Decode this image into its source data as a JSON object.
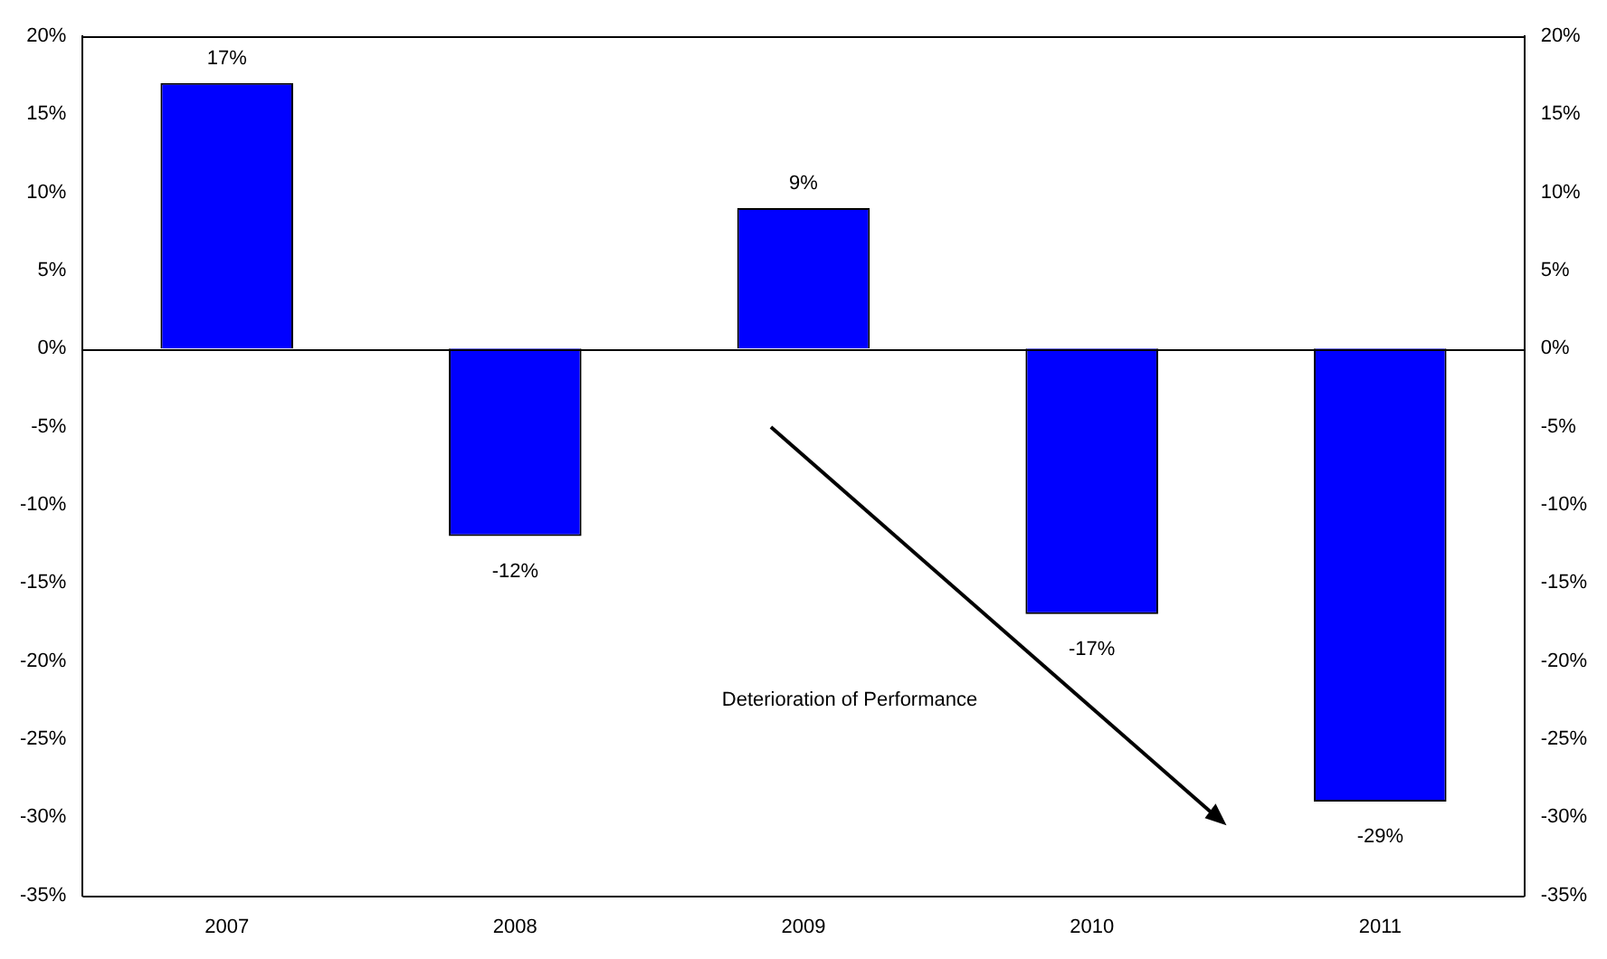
{
  "chart_data": {
    "type": "bar",
    "categories": [
      "2007",
      "2008",
      "2009",
      "2010",
      "2011"
    ],
    "values": [
      17,
      -12,
      9,
      -17,
      -29
    ],
    "color": "#0000ff",
    "value_labels": [
      "17%",
      "-12%",
      "9%",
      "-17%",
      "-29%"
    ],
    "ylim": [
      -35,
      20
    ],
    "yticks": [
      {
        "value": -35,
        "label": "-35%"
      },
      {
        "value": -30,
        "label": "-30%"
      },
      {
        "value": -25,
        "label": "-25%"
      },
      {
        "value": -20,
        "label": "-20%"
      },
      {
        "value": -15,
        "label": "-15%"
      },
      {
        "value": -10,
        "label": "-10%"
      },
      {
        "value": -5,
        "label": "-5%"
      },
      {
        "value": 0,
        "label": "0%"
      },
      {
        "value": 5,
        "label": "5%"
      },
      {
        "value": 10,
        "label": "10%"
      },
      {
        "value": 15,
        "label": "15%"
      },
      {
        "value": 20,
        "label": "20%"
      }
    ],
    "y2lim": [
      -35,
      20
    ],
    "y2ticks": [
      {
        "value": -35,
        "label": "-35%"
      },
      {
        "value": -30,
        "label": "-30%"
      },
      {
        "value": -25,
        "label": "-25%"
      },
      {
        "value": -20,
        "label": "-20%"
      },
      {
        "value": -15,
        "label": "-15%"
      },
      {
        "value": -10,
        "label": "-10%"
      },
      {
        "value": -5,
        "label": "-5%"
      },
      {
        "value": 0,
        "label": "0%"
      },
      {
        "value": 5,
        "label": "5%"
      },
      {
        "value": 10,
        "label": "10%"
      },
      {
        "value": 15,
        "label": "15%"
      },
      {
        "value": 20,
        "label": "20%"
      }
    ],
    "annotations": [
      "Deterioration of Performance"
    ],
    "legend": false
  }
}
